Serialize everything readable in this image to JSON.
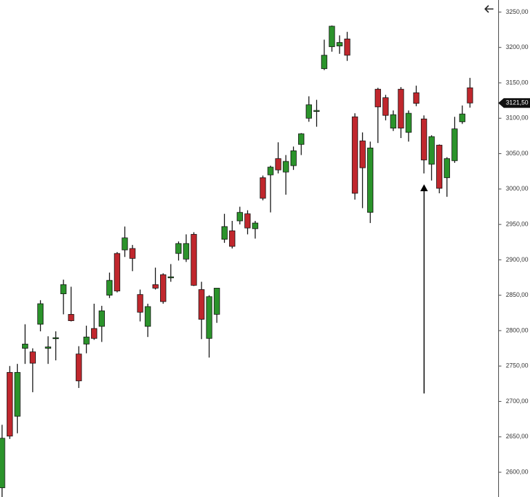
{
  "chart_data": {
    "type": "candlestick",
    "open": [
      2578,
      2741,
      2679,
      2775,
      2770,
      2809,
      2775,
      2789,
      2852,
      2823,
      2767,
      2781,
      2803,
      2806,
      2850,
      2909,
      2914,
      2916,
      2851,
      2806,
      2865,
      2879,
      2875,
      2909,
      2901,
      2936,
      2858,
      2789,
      2823,
      2929,
      2941,
      2955,
      2965,
      2944,
      3016,
      3020,
      3043,
      3024,
      3033,
      3063,
      3100,
      3110,
      3170,
      3201,
      3202,
      3212,
      3102,
      3068,
      2967,
      3141,
      3129,
      3086,
      3141,
      3080,
      3136,
      3099,
      3035,
      3062,
      3016,
      3040,
      3095,
      3143
    ],
    "high": [
      2667,
      2750,
      2753,
      2809,
      2775,
      2843,
      2792,
      2799,
      2872,
      2862,
      2778,
      2807,
      2838,
      2835,
      2882,
      2911,
      2947,
      2921,
      2858,
      2838,
      2889,
      2881,
      2894,
      2926,
      2936,
      2939,
      2869,
      2850,
      2860,
      2965,
      2955,
      2975,
      2970,
      2955,
      3019,
      3033,
      3066,
      3048,
      3060,
      3079,
      3131,
      3126,
      3211,
      3231,
      3217,
      3222,
      3107,
      3080,
      3067,
      3143,
      3133,
      3111,
      3144,
      3111,
      3146,
      3104,
      3076,
      3063,
      3045,
      3102,
      3118,
      3157
    ],
    "low": [
      2565,
      2647,
      2655,
      2753,
      2713,
      2799,
      2753,
      2758,
      2823,
      2813,
      2719,
      2768,
      2787,
      2784,
      2846,
      2854,
      2904,
      2884,
      2813,
      2791,
      2858,
      2838,
      2869,
      2899,
      2897,
      2863,
      2788,
      2762,
      2811,
      2924,
      2916,
      2950,
      2936,
      2930,
      2984,
      2967,
      3022,
      2992,
      3027,
      3048,
      3095,
      3088,
      3168,
      3194,
      3191,
      3181,
      2985,
      2973,
      2952,
      3065,
      3097,
      3082,
      3072,
      3067,
      3117,
      3022,
      3012,
      2994,
      2989,
      3037,
      3092,
      3115
    ],
    "close": [
      2648,
      2651,
      2741,
      2781,
      2754,
      2838,
      2777,
      2790,
      2865,
      2814,
      2729,
      2791,
      2789,
      2828,
      2871,
      2856,
      2931,
      2902,
      2826,
      2834,
      2860,
      2841,
      2876,
      2923,
      2923,
      2864,
      2816,
      2848,
      2860,
      2947,
      2919,
      2967,
      2945,
      2952,
      2987,
      3031,
      3027,
      3039,
      3054,
      3078,
      3119,
      3111,
      3189,
      3230,
      3207,
      3189,
      2994,
      3030,
      3058,
      3116,
      3104,
      3105,
      3086,
      3107,
      3121,
      3041,
      3074,
      3001,
      3043,
      3085,
      3106,
      3121.5
    ],
    "up_color": "#2b932b",
    "down_color": "#c0272d",
    "ylim": [
      2565,
      3267
    ],
    "yticks": [
      {
        "value": 2600,
        "label": "2600,00"
      },
      {
        "value": 2650,
        "label": "2650,00"
      },
      {
        "value": 2700,
        "label": "2700,00"
      },
      {
        "value": 2750,
        "label": "2750,00"
      },
      {
        "value": 2800,
        "label": "2800,00"
      },
      {
        "value": 2850,
        "label": "2850,00"
      },
      {
        "value": 2900,
        "label": "2900,00"
      },
      {
        "value": 2950,
        "label": "2950,00"
      },
      {
        "value": 3000,
        "label": "3000,00"
      },
      {
        "value": 3050,
        "label": "3050,00"
      },
      {
        "value": 3100,
        "label": "3100,00"
      },
      {
        "value": 3150,
        "label": "3150,00"
      },
      {
        "value": 3200,
        "label": "3200,00"
      },
      {
        "value": 3250,
        "label": "3250,00"
      }
    ],
    "last_price": {
      "value": 3121.5,
      "label": "3121,50"
    }
  }
}
